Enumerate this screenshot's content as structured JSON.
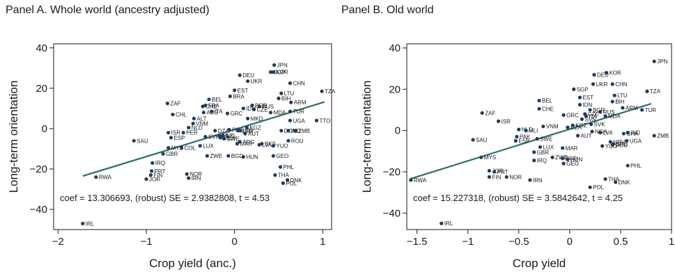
{
  "colors": {
    "point": "#1f3b5c",
    "fit_line": "#2c6e68",
    "axis": "#1a1a1a",
    "plot_bg": "#ffffff"
  },
  "chart_data": [
    {
      "type": "scatter",
      "title": "Panel A. Whole world (ancestry adjusted)",
      "xlabel": "Crop yield (anc.)",
      "ylabel": "Long-term orientation",
      "xlim": [
        -2.05,
        1.1
      ],
      "ylim": [
        -50,
        42
      ],
      "xticks": [
        -2,
        -1,
        0,
        1
      ],
      "xtick_labels": [
        "−2",
        "−1",
        "0",
        "1"
      ],
      "yticks": [
        -40,
        -20,
        0,
        20,
        40
      ],
      "ytick_labels": [
        "−40",
        "−20",
        "0",
        "20",
        "40"
      ],
      "grid": false,
      "annotation": "coef = 13.306693, (robust) SE = 2.9382808, t = 4.53",
      "fit": {
        "x": [
          -1.72,
          1.02
        ],
        "y": [
          -23.5,
          13.2
        ]
      },
      "points": [
        {
          "label": "IRL",
          "x": -1.72,
          "y": -47
        },
        {
          "label": "RWA",
          "x": -1.57,
          "y": -24
        },
        {
          "label": "SAU",
          "x": -1.14,
          "y": -6
        },
        {
          "label": "JOR",
          "x": -1.0,
          "y": -25
        },
        {
          "label": "FIN",
          "x": -0.95,
          "y": -23
        },
        {
          "label": "PRT",
          "x": -0.94,
          "y": -21
        },
        {
          "label": "IRQ",
          "x": -0.93,
          "y": -17
        },
        {
          "label": "GBR",
          "x": -0.81,
          "y": -12.5
        },
        {
          "label": "MYS",
          "x": -0.75,
          "y": -9.5
        },
        {
          "label": "ESP",
          "x": -0.72,
          "y": -4.5
        },
        {
          "label": "ISR",
          "x": -0.75,
          "y": -2
        },
        {
          "label": "CHL",
          "x": -0.7,
          "y": 7
        },
        {
          "label": "ZAF",
          "x": -0.76,
          "y": 12.5
        },
        {
          "label": "COL",
          "x": -0.6,
          "y": -9.5
        },
        {
          "label": "PER",
          "x": -0.58,
          "y": -2
        },
        {
          "label": "NLD",
          "x": -0.52,
          "y": 0.5
        },
        {
          "label": "VNM",
          "x": -0.47,
          "y": 2.5
        },
        {
          "label": "ALT",
          "x": -0.46,
          "y": 5
        },
        {
          "label": "LUX",
          "x": -0.39,
          "y": -8.5
        },
        {
          "label": "NOR",
          "x": -0.54,
          "y": -22.5
        },
        {
          "label": "IRN",
          "x": -0.52,
          "y": -24.5
        },
        {
          "label": "ZWE",
          "x": -0.31,
          "y": -13.5
        },
        {
          "label": "SVK",
          "x": -0.33,
          "y": -4
        },
        {
          "label": "BEL",
          "x": -0.29,
          "y": 14.5
        },
        {
          "label": "CHE",
          "x": -0.36,
          "y": 11
        },
        {
          "label": "FRA",
          "x": -0.33,
          "y": 11.5
        },
        {
          "label": "AUS",
          "x": -0.35,
          "y": 8
        },
        {
          "label": "ITA",
          "x": -0.26,
          "y": 8.5
        },
        {
          "label": "DZA",
          "x": -0.22,
          "y": -1
        },
        {
          "label": "MLI",
          "x": -0.17,
          "y": -3.5
        },
        {
          "label": "MEX",
          "x": -0.16,
          "y": -4.5
        },
        {
          "label": "NZL",
          "x": -0.13,
          "y": -3.5
        },
        {
          "label": "SWE",
          "x": -0.12,
          "y": -5
        },
        {
          "label": "BRA",
          "x": -0.05,
          "y": 16
        },
        {
          "label": "BGD",
          "x": -0.07,
          "y": -13.5
        },
        {
          "label": "GRC",
          "x": -0.08,
          "y": 7.5
        },
        {
          "label": "HUN",
          "x": 0.1,
          "y": -14
        },
        {
          "label": "EST",
          "x": 0.0,
          "y": 19
        },
        {
          "label": "PAK",
          "x": -0.06,
          "y": -0.5
        },
        {
          "label": "SVN",
          "x": 0.04,
          "y": -1
        },
        {
          "label": "URY",
          "x": 0.06,
          "y": -1
        },
        {
          "label": "AUT",
          "x": 0.12,
          "y": -2.5
        },
        {
          "label": "KGZ",
          "x": 0.14,
          "y": 0.5
        },
        {
          "label": "DEU",
          "x": 0.06,
          "y": 26.5
        },
        {
          "label": "UKR",
          "x": 0.15,
          "y": 23.5
        },
        {
          "label": "POL",
          "x": 0.55,
          "y": -27
        },
        {
          "label": "DNK",
          "x": 0.6,
          "y": -25.5
        },
        {
          "label": "THA",
          "x": 0.46,
          "y": -23
        },
        {
          "label": "PHL",
          "x": 0.52,
          "y": -19
        },
        {
          "label": "GEO",
          "x": 0.44,
          "y": -13.5
        },
        {
          "label": "ROU",
          "x": 0.61,
          "y": -6
        },
        {
          "label": "MAR",
          "x": 0.03,
          "y": -7.5
        },
        {
          "label": "ARG",
          "x": 0.06,
          "y": -6.5
        },
        {
          "label": "LVA",
          "x": 0.28,
          "y": -8
        },
        {
          "label": "SYS",
          "x": 0.31,
          "y": -7.5
        },
        {
          "label": "YUO",
          "x": 0.44,
          "y": -8.5
        },
        {
          "label": "DOM",
          "x": 0.53,
          "y": -1
        },
        {
          "label": "IND",
          "x": 0.61,
          "y": -1
        },
        {
          "label": "ZMB",
          "x": 0.69,
          "y": -1
        },
        {
          "label": "UGA",
          "x": 0.63,
          "y": 4
        },
        {
          "label": "TTO",
          "x": 0.93,
          "y": 4
        },
        {
          "label": "MDA",
          "x": 0.41,
          "y": 8
        },
        {
          "label": "TUR",
          "x": 0.63,
          "y": 8.5
        },
        {
          "label": "ARM",
          "x": 0.64,
          "y": 13
        },
        {
          "label": "BIH",
          "x": 0.5,
          "y": 15
        },
        {
          "label": "LTU",
          "x": 0.53,
          "y": 17.5
        },
        {
          "label": "TZA",
          "x": 0.99,
          "y": 18.5
        },
        {
          "label": "CHN",
          "x": 0.63,
          "y": 22.5
        },
        {
          "label": "KOR",
          "x": 0.44,
          "y": 28
        },
        {
          "label": "SGP",
          "x": 0.41,
          "y": 28
        },
        {
          "label": "JPN",
          "x": 0.45,
          "y": 31.5
        },
        {
          "label": "BGR",
          "x": 0.2,
          "y": 11.5
        },
        {
          "label": "RUS",
          "x": 0.28,
          "y": 11
        },
        {
          "label": "CZE",
          "x": 0.22,
          "y": 9.5
        },
        {
          "label": "IDN",
          "x": 0.1,
          "y": 10
        },
        {
          "label": "MKD",
          "x": 0.15,
          "y": 5
        }
      ]
    },
    {
      "type": "scatter",
      "title": "Panel B. Old world",
      "xlabel": "Crop yield",
      "ylabel": "Long-term orientation",
      "xlim": [
        -1.6,
        1.0
      ],
      "ylim": [
        -48,
        42
      ],
      "xticks": [
        -1.5,
        -1,
        -0.5,
        0,
        0.5,
        1
      ],
      "xtick_labels": [
        "−1.5",
        "−1",
        "−0.5",
        "0",
        "0.5",
        "1"
      ],
      "yticks": [
        -40,
        -20,
        0,
        20,
        40
      ],
      "ytick_labels": [
        "−40",
        "−20",
        "0",
        "20",
        "40"
      ],
      "grid": false,
      "annotation": "coef = 15.227318, (robust) SE = 3.5842642, t = 4.25",
      "fit": {
        "x": [
          -1.57,
          0.8
        ],
        "y": [
          -23.5,
          13
        ]
      },
      "points": [
        {
          "label": "IRL",
          "x": -1.26,
          "y": -45
        },
        {
          "label": "RWA",
          "x": -1.56,
          "y": -24
        },
        {
          "label": "SAU",
          "x": -0.95,
          "y": -4.5
        },
        {
          "label": "MYS",
          "x": -0.87,
          "y": -13
        },
        {
          "label": "ZAF",
          "x": -0.86,
          "y": 8.5
        },
        {
          "label": "ISR",
          "x": -0.7,
          "y": 4.5
        },
        {
          "label": "JOR",
          "x": -0.79,
          "y": -19.5
        },
        {
          "label": "FIN",
          "x": -0.79,
          "y": -22.5
        },
        {
          "label": "PRT",
          "x": -0.74,
          "y": -20
        },
        {
          "label": "NOR",
          "x": -0.62,
          "y": -22.5
        },
        {
          "label": "PAK",
          "x": -0.52,
          "y": -3
        },
        {
          "label": "ESP",
          "x": -0.53,
          "y": -5
        },
        {
          "label": "NLD",
          "x": -0.5,
          "y": 0.5
        },
        {
          "label": "MLI",
          "x": -0.43,
          "y": 0
        },
        {
          "label": "GBR",
          "x": -0.35,
          "y": -10.5
        },
        {
          "label": "IRQ",
          "x": -0.35,
          "y": -14.5
        },
        {
          "label": "LUX",
          "x": -0.29,
          "y": -8
        },
        {
          "label": "SWE",
          "x": -0.32,
          "y": -4
        },
        {
          "label": "IRN",
          "x": -0.39,
          "y": -24
        },
        {
          "label": "VNM",
          "x": -0.26,
          "y": 2
        },
        {
          "label": "BEL",
          "x": -0.3,
          "y": 14.5
        },
        {
          "label": "CHE",
          "x": -0.3,
          "y": 10.5
        },
        {
          "label": "ZWE",
          "x": -0.17,
          "y": -13
        },
        {
          "label": "BGD",
          "x": -0.07,
          "y": -13.5
        },
        {
          "label": "GEO",
          "x": -0.06,
          "y": -16
        },
        {
          "label": "HUN",
          "x": -0.02,
          "y": -14
        },
        {
          "label": "MAR",
          "x": -0.07,
          "y": -8.5
        },
        {
          "label": "GRC",
          "x": -0.06,
          "y": 7.5
        },
        {
          "label": "DZA",
          "x": -0.02,
          "y": 1.5
        },
        {
          "label": "KGZ",
          "x": 0.03,
          "y": 2.5
        },
        {
          "label": "AUT",
          "x": 0.08,
          "y": -2.5
        },
        {
          "label": "EST",
          "x": 0.1,
          "y": 16
        },
        {
          "label": "SGP",
          "x": 0.04,
          "y": 20
        },
        {
          "label": "DEU",
          "x": 0.24,
          "y": 27
        },
        {
          "label": "KOR",
          "x": 0.36,
          "y": 28
        },
        {
          "label": "UKR",
          "x": 0.23,
          "y": 22.5
        },
        {
          "label": "CHN",
          "x": 0.42,
          "y": 22.5
        },
        {
          "label": "IDN",
          "x": 0.1,
          "y": 12.5
        },
        {
          "label": "BGR",
          "x": 0.2,
          "y": 10
        },
        {
          "label": "RUS",
          "x": 0.3,
          "y": 9
        },
        {
          "label": "CZE",
          "x": 0.15,
          "y": 8
        },
        {
          "label": "ITA",
          "x": 0.16,
          "y": 7
        },
        {
          "label": "SVN",
          "x": 0.12,
          "y": 5.5
        },
        {
          "label": "MDA",
          "x": 0.35,
          "y": 7
        },
        {
          "label": "LTU",
          "x": 0.44,
          "y": 17
        },
        {
          "label": "BIH",
          "x": 0.42,
          "y": 14
        },
        {
          "label": "ARM",
          "x": 0.52,
          "y": 11
        },
        {
          "label": "SVK",
          "x": 0.21,
          "y": 3
        },
        {
          "label": "LVA",
          "x": 0.3,
          "y": -1
        },
        {
          "label": "NGA",
          "x": 0.22,
          "y": -0.5
        },
        {
          "label": "IND",
          "x": 0.57,
          "y": -1
        },
        {
          "label": "GHA",
          "x": 0.53,
          "y": -1.5
        },
        {
          "label": "ZMB",
          "x": 0.83,
          "y": -2.5
        },
        {
          "label": "UGA",
          "x": 0.56,
          "y": -5
        },
        {
          "label": "YUO",
          "x": 0.32,
          "y": -7.5
        },
        {
          "label": "ROU",
          "x": 0.42,
          "y": -7
        },
        {
          "label": "HRV",
          "x": 0.4,
          "y": -5.5
        },
        {
          "label": "SRB",
          "x": 0.43,
          "y": -6.5
        },
        {
          "label": "PHL",
          "x": 0.57,
          "y": -17
        },
        {
          "label": "THA",
          "x": 0.35,
          "y": -23.5
        },
        {
          "label": "DNK",
          "x": 0.45,
          "y": -25
        },
        {
          "label": "POL",
          "x": 0.2,
          "y": -27.5
        },
        {
          "label": "TUR",
          "x": 0.71,
          "y": 10
        },
        {
          "label": "TZA",
          "x": 0.76,
          "y": 19
        },
        {
          "label": "JPN",
          "x": 0.83,
          "y": 33.5
        }
      ]
    }
  ]
}
